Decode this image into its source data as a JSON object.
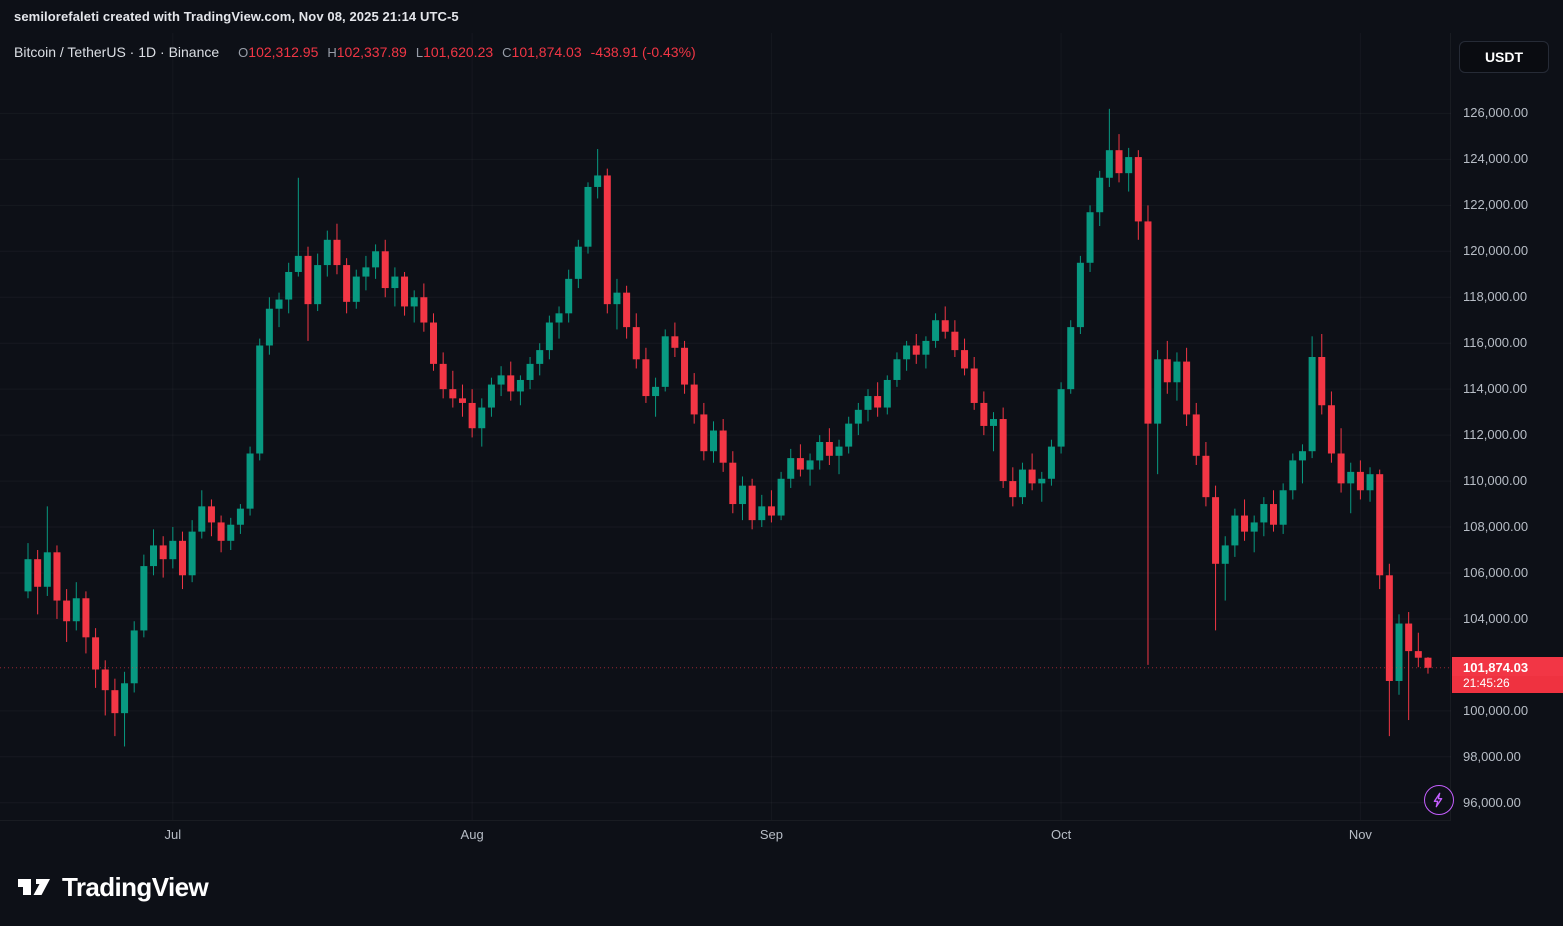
{
  "attribution": {
    "text": "semilorefaleti created with TradingView.com, Nov 08, 2025 21:14 UTC-5"
  },
  "header": {
    "title": "Bitcoin / TetherUS · 1D · Binance",
    "ohlc_labels": {
      "o": "O",
      "h": "H",
      "l": "L",
      "c": "C"
    },
    "ohlc": {
      "o": "102,312.95",
      "h": "102,337.89",
      "l": "101,620.23",
      "c": "101,874.03",
      "change": "-438.91 (-0.43%)"
    }
  },
  "currency_button": {
    "label": "USDT"
  },
  "last_price": {
    "value": 101874.03,
    "display": "101,874.03",
    "countdown": "21:45:26"
  },
  "price_scale": {
    "entries": [
      {
        "label": "126,000.00",
        "value": 126000
      },
      {
        "label": "124,000.00",
        "value": 124000
      },
      {
        "label": "122,000.00",
        "value": 122000
      },
      {
        "label": "120,000.00",
        "value": 120000
      },
      {
        "label": "118,000.00",
        "value": 118000
      },
      {
        "label": "116,000.00",
        "value": 116000
      },
      {
        "label": "114,000.00",
        "value": 114000
      },
      {
        "label": "112,000.00",
        "value": 112000
      },
      {
        "label": "110,000.00",
        "value": 110000
      },
      {
        "label": "108,000.00",
        "value": 108000
      },
      {
        "label": "106,000.00",
        "value": 106000
      },
      {
        "label": "104,000.00",
        "value": 104000
      },
      {
        "label": "100,000.00",
        "value": 100000
      },
      {
        "label": "98,000.00",
        "value": 98000
      },
      {
        "label": "96,000.00",
        "value": 96000
      }
    ]
  },
  "colors": {
    "up": "#089981",
    "down": "#f23645",
    "background": "#0d1017",
    "axis_text": "#b7bdc6",
    "badge": "#f23645",
    "boost": "#c45eff"
  },
  "boost_button": {
    "icon": "lightning-icon"
  },
  "logo": {
    "text": "TradingView"
  },
  "chart_data": {
    "type": "candlestick",
    "title": "Bitcoin / TetherUS, 1D, Binance",
    "symbol": "BTC/USDT",
    "interval": "1D",
    "units": "USDT",
    "y_axis": {
      "min": 96000,
      "max": 126000,
      "step": 2000,
      "grid": "faint"
    },
    "months": [
      {
        "label": "Jul",
        "index": 15
      },
      {
        "label": "Aug",
        "index": 46
      },
      {
        "label": "Sep",
        "index": 77
      },
      {
        "label": "Oct",
        "index": 107
      },
      {
        "label": "Nov",
        "index": 138
      }
    ],
    "last_close": 101874.03,
    "candles": [
      [
        105200,
        107300,
        104900,
        106600
      ],
      [
        106600,
        107000,
        104200,
        105400
      ],
      [
        105400,
        108900,
        105000,
        106900
      ],
      [
        106900,
        107200,
        104000,
        104800
      ],
      [
        104800,
        105300,
        103000,
        103900
      ],
      [
        103900,
        105600,
        103500,
        104900
      ],
      [
        104900,
        105200,
        102500,
        103200
      ],
      [
        103200,
        103600,
        101000,
        101800
      ],
      [
        101800,
        102200,
        99800,
        100900
      ],
      [
        100900,
        101400,
        98900,
        99900
      ],
      [
        99900,
        101700,
        98450,
        101200
      ],
      [
        101200,
        103900,
        100800,
        103500
      ],
      [
        103500,
        106800,
        103200,
        106300
      ],
      [
        106300,
        107900,
        105900,
        107200
      ],
      [
        107200,
        107600,
        105800,
        106600
      ],
      [
        106600,
        108000,
        106200,
        107400
      ],
      [
        107400,
        107800,
        105300,
        105900
      ],
      [
        105900,
        108300,
        105600,
        107800
      ],
      [
        107800,
        109600,
        107500,
        108900
      ],
      [
        108900,
        109200,
        107600,
        108200
      ],
      [
        108200,
        108500,
        106900,
        107400
      ],
      [
        107400,
        108400,
        107000,
        108100
      ],
      [
        108100,
        109000,
        107700,
        108800
      ],
      [
        108800,
        111500,
        108500,
        111200
      ],
      [
        111200,
        116200,
        110900,
        115900
      ],
      [
        115900,
        118000,
        115500,
        117500
      ],
      [
        117500,
        118200,
        116700,
        117900
      ],
      [
        117900,
        119500,
        117300,
        119100
      ],
      [
        119100,
        123200,
        118900,
        119800
      ],
      [
        119800,
        120200,
        116100,
        117700
      ],
      [
        117700,
        119900,
        117400,
        119400
      ],
      [
        119400,
        120900,
        118900,
        120500
      ],
      [
        120500,
        121200,
        119000,
        119400
      ],
      [
        119400,
        119700,
        117300,
        117800
      ],
      [
        117800,
        119200,
        117500,
        118900
      ],
      [
        118900,
        119800,
        118300,
        119300
      ],
      [
        119300,
        120300,
        118800,
        120000
      ],
      [
        120000,
        120500,
        118000,
        118400
      ],
      [
        118400,
        119300,
        117600,
        118900
      ],
      [
        118900,
        119100,
        117200,
        117600
      ],
      [
        117600,
        118300,
        116900,
        118000
      ],
      [
        118000,
        118600,
        116500,
        116900
      ],
      [
        116900,
        117300,
        114800,
        115100
      ],
      [
        115100,
        115600,
        113600,
        114000
      ],
      [
        114000,
        114800,
        113200,
        113600
      ],
      [
        113600,
        114200,
        112800,
        113400
      ],
      [
        113400,
        114000,
        111900,
        112300
      ],
      [
        112300,
        113600,
        111500,
        113200
      ],
      [
        113200,
        114500,
        112800,
        114200
      ],
      [
        114200,
        115000,
        113700,
        114600
      ],
      [
        114600,
        115200,
        113500,
        113900
      ],
      [
        113900,
        114600,
        113300,
        114400
      ],
      [
        114400,
        115400,
        114000,
        115100
      ],
      [
        115100,
        116000,
        114600,
        115700
      ],
      [
        115700,
        117200,
        115300,
        116900
      ],
      [
        116900,
        117600,
        116200,
        117300
      ],
      [
        117300,
        119200,
        116900,
        118800
      ],
      [
        118800,
        120500,
        118400,
        120200
      ],
      [
        120200,
        123000,
        119900,
        122800
      ],
      [
        122800,
        124450,
        122300,
        123300
      ],
      [
        123300,
        123600,
        117300,
        117700
      ],
      [
        117700,
        118800,
        116600,
        118200
      ],
      [
        118200,
        118500,
        116200,
        116700
      ],
      [
        116700,
        117300,
        114900,
        115300
      ],
      [
        115300,
        115800,
        113400,
        113700
      ],
      [
        113700,
        114500,
        112800,
        114100
      ],
      [
        114100,
        116600,
        113900,
        116300
      ],
      [
        116300,
        116900,
        115400,
        115800
      ],
      [
        115800,
        116100,
        113800,
        114200
      ],
      [
        114200,
        114700,
        112500,
        112900
      ],
      [
        112900,
        113400,
        110900,
        111300
      ],
      [
        111300,
        112600,
        110800,
        112200
      ],
      [
        112200,
        112700,
        110400,
        110800
      ],
      [
        110800,
        111300,
        108600,
        109000
      ],
      [
        109000,
        110200,
        108300,
        109800
      ],
      [
        109800,
        110100,
        107900,
        108300
      ],
      [
        108300,
        109400,
        108000,
        108900
      ],
      [
        108900,
        109600,
        108200,
        108500
      ],
      [
        108500,
        110400,
        108300,
        110100
      ],
      [
        110100,
        111400,
        109700,
        111000
      ],
      [
        111000,
        111600,
        110200,
        110500
      ],
      [
        110500,
        111200,
        109800,
        110900
      ],
      [
        110900,
        112000,
        110500,
        111700
      ],
      [
        111700,
        112300,
        110700,
        111100
      ],
      [
        111100,
        111800,
        110300,
        111500
      ],
      [
        111500,
        112800,
        111200,
        112500
      ],
      [
        112500,
        113400,
        112000,
        113100
      ],
      [
        113100,
        114000,
        112600,
        113700
      ],
      [
        113700,
        114300,
        112800,
        113200
      ],
      [
        113200,
        114600,
        112900,
        114400
      ],
      [
        114400,
        115600,
        114100,
        115300
      ],
      [
        115300,
        116100,
        114800,
        115900
      ],
      [
        115900,
        116400,
        115100,
        115500
      ],
      [
        115500,
        116300,
        114900,
        116100
      ],
      [
        116100,
        117300,
        115800,
        117000
      ],
      [
        117000,
        117600,
        116200,
        116500
      ],
      [
        116500,
        117000,
        115400,
        115700
      ],
      [
        115700,
        116200,
        114600,
        114900
      ],
      [
        114900,
        115400,
        113100,
        113400
      ],
      [
        113400,
        113900,
        112000,
        112400
      ],
      [
        112400,
        113000,
        111300,
        112700
      ],
      [
        112700,
        113200,
        109700,
        110000
      ],
      [
        110000,
        110600,
        108900,
        109300
      ],
      [
        109300,
        110800,
        109000,
        110500
      ],
      [
        110500,
        111200,
        109600,
        109900
      ],
      [
        109900,
        110400,
        109100,
        110100
      ],
      [
        110100,
        111800,
        109800,
        111500
      ],
      [
        111500,
        114300,
        111200,
        114000
      ],
      [
        114000,
        117000,
        113800,
        116700
      ],
      [
        116700,
        119800,
        116400,
        119500
      ],
      [
        119500,
        122000,
        119100,
        121700
      ],
      [
        121700,
        123500,
        121100,
        123200
      ],
      [
        123200,
        126200,
        122800,
        124400
      ],
      [
        124400,
        125100,
        123000,
        123400
      ],
      [
        123400,
        124500,
        122600,
        124100
      ],
      [
        124100,
        124400,
        120500,
        121300
      ],
      [
        121300,
        122000,
        102000,
        112500
      ],
      [
        112500,
        115700,
        110300,
        115300
      ],
      [
        115300,
        116100,
        113800,
        114300
      ],
      [
        114300,
        115600,
        113500,
        115200
      ],
      [
        115200,
        115800,
        112400,
        112900
      ],
      [
        112900,
        113400,
        110700,
        111100
      ],
      [
        111100,
        111700,
        108900,
        109300
      ],
      [
        109300,
        109800,
        103500,
        106400
      ],
      [
        106400,
        107600,
        104800,
        107200
      ],
      [
        107200,
        108800,
        106700,
        108500
      ],
      [
        108500,
        109200,
        107400,
        107800
      ],
      [
        107800,
        108500,
        106900,
        108200
      ],
      [
        108200,
        109300,
        107600,
        109000
      ],
      [
        109000,
        109600,
        107800,
        108100
      ],
      [
        108100,
        109900,
        107700,
        109600
      ],
      [
        109600,
        111200,
        109200,
        110900
      ],
      [
        110900,
        111600,
        109900,
        111300
      ],
      [
        111300,
        116300,
        111000,
        115400
      ],
      [
        115400,
        116400,
        112900,
        113300
      ],
      [
        113300,
        113900,
        110800,
        111200
      ],
      [
        111200,
        112300,
        109500,
        109900
      ],
      [
        109900,
        110800,
        108600,
        110400
      ],
      [
        110400,
        110900,
        109200,
        109600
      ],
      [
        109600,
        110600,
        109100,
        110300
      ],
      [
        110300,
        110500,
        105300,
        105900
      ],
      [
        105900,
        106400,
        98900,
        101300
      ],
      [
        101300,
        104200,
        100700,
        103800
      ],
      [
        103800,
        104300,
        99600,
        102600
      ],
      [
        102600,
        103400,
        101900,
        102312.94
      ],
      [
        102312.95,
        102337.89,
        101620.23,
        101874.03
      ]
    ]
  }
}
